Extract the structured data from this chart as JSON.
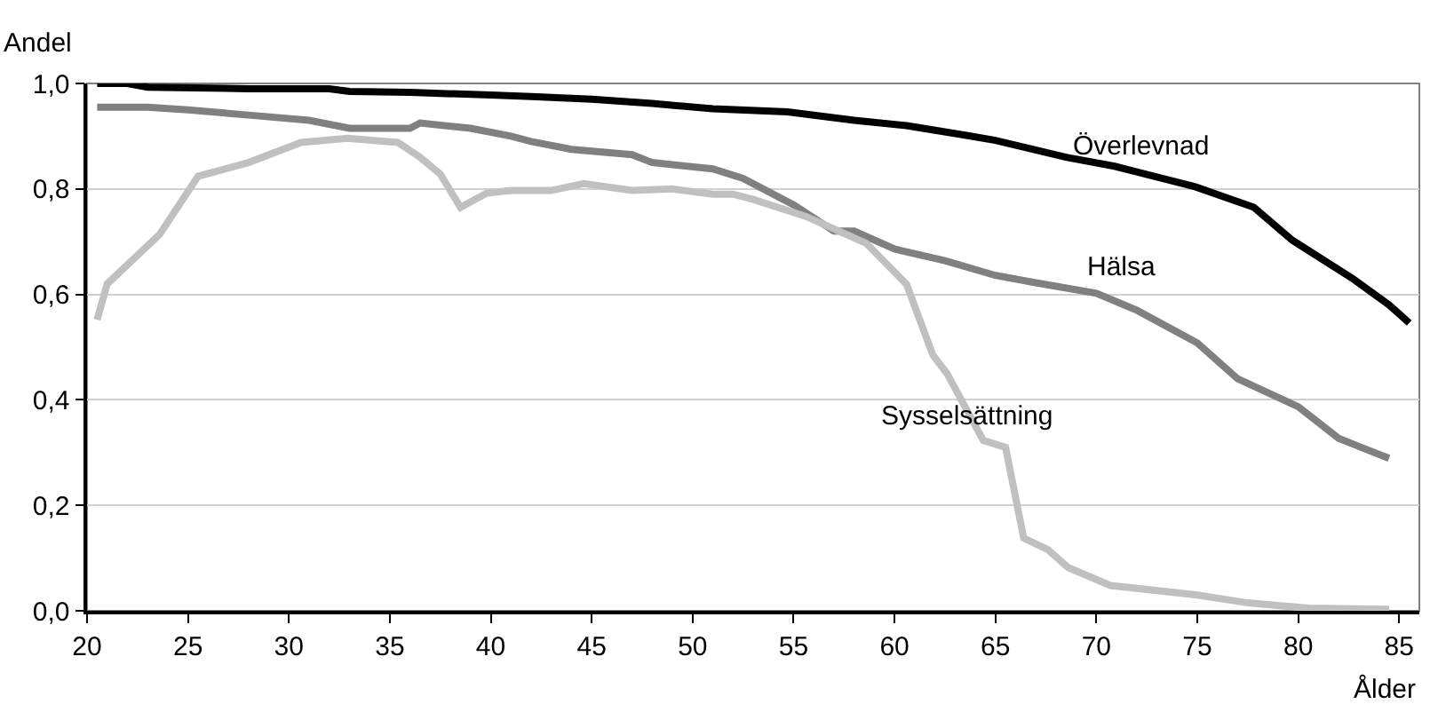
{
  "chart_data": {
    "type": "line",
    "xlabel": "Ålder",
    "ylabel": "Andel",
    "xlim": [
      20,
      86
    ],
    "xticks": [
      20,
      25,
      30,
      35,
      40,
      45,
      50,
      55,
      60,
      65,
      70,
      75,
      80,
      85
    ],
    "ylim": [
      0,
      1
    ],
    "yticks": [
      {
        "value": 0,
        "label": "0,0"
      },
      {
        "value": 0.2,
        "label": "0,2"
      },
      {
        "value": 0.4,
        "label": "0,4"
      },
      {
        "value": 0.6,
        "label": "0,6"
      },
      {
        "value": 0.8,
        "label": "0,8"
      },
      {
        "value": 1,
        "label": "1,0"
      }
    ],
    "grid": "y",
    "legend": false,
    "marker": "none",
    "line_style": "solid",
    "series": [
      {
        "name": "Överlevnad",
        "color": "#000000",
        "x": [
          20.5,
          22,
          23,
          28,
          32,
          33,
          36,
          40,
          42,
          45,
          48,
          51,
          54.7,
          58,
          60.6,
          63.5,
          65,
          68.5,
          70.9,
          74.9,
          77.8,
          79.7,
          82.7,
          84.5,
          85.5
        ],
        "values": [
          1.0,
          1.0,
          0.993,
          0.99,
          0.99,
          0.985,
          0.983,
          0.978,
          0.975,
          0.97,
          0.962,
          0.952,
          0.946,
          0.93,
          0.92,
          0.902,
          0.892,
          0.86,
          0.843,
          0.804,
          0.765,
          0.703,
          0.63,
          0.58,
          0.546
        ]
      },
      {
        "name": "Hälsa",
        "color": "#808080",
        "x": [
          20.5,
          23,
          25,
          28,
          31,
          33,
          36,
          36.5,
          39,
          41,
          42,
          44,
          47,
          48,
          51,
          52.5,
          55,
          57,
          58,
          60,
          62.5,
          65,
          67,
          70,
          72,
          75,
          77,
          80,
          82,
          84.5
        ],
        "values": [
          0.955,
          0.955,
          0.95,
          0.94,
          0.93,
          0.915,
          0.915,
          0.925,
          0.915,
          0.9,
          0.89,
          0.875,
          0.865,
          0.85,
          0.838,
          0.82,
          0.77,
          0.72,
          0.72,
          0.686,
          0.664,
          0.636,
          0.622,
          0.602,
          0.57,
          0.508,
          0.44,
          0.387,
          0.327,
          0.289
        ]
      },
      {
        "name": "Sysselsättning",
        "color": "#c0c0c0",
        "x": [
          20.5,
          21,
          23.6,
          25.5,
          28,
          30.6,
          32.9,
          35.4,
          36.5,
          37.5,
          38.5,
          39.8,
          41,
          43,
          44.6,
          47,
          49,
          51,
          52,
          53,
          55.6,
          58.6,
          60.6,
          61.9,
          62.6,
          64.4,
          65.5,
          66.4,
          67.6,
          68.6,
          70.7,
          75,
          77.5,
          80.5,
          84.5
        ],
        "values": [
          0.552,
          0.62,
          0.714,
          0.824,
          0.85,
          0.888,
          0.896,
          0.888,
          0.86,
          0.828,
          0.765,
          0.792,
          0.797,
          0.797,
          0.81,
          0.797,
          0.8,
          0.79,
          0.79,
          0.78,
          0.748,
          0.697,
          0.619,
          0.485,
          0.45,
          0.323,
          0.31,
          0.138,
          0.116,
          0.082,
          0.048,
          0.03,
          0.015,
          0.005,
          0.003
        ]
      }
    ]
  }
}
